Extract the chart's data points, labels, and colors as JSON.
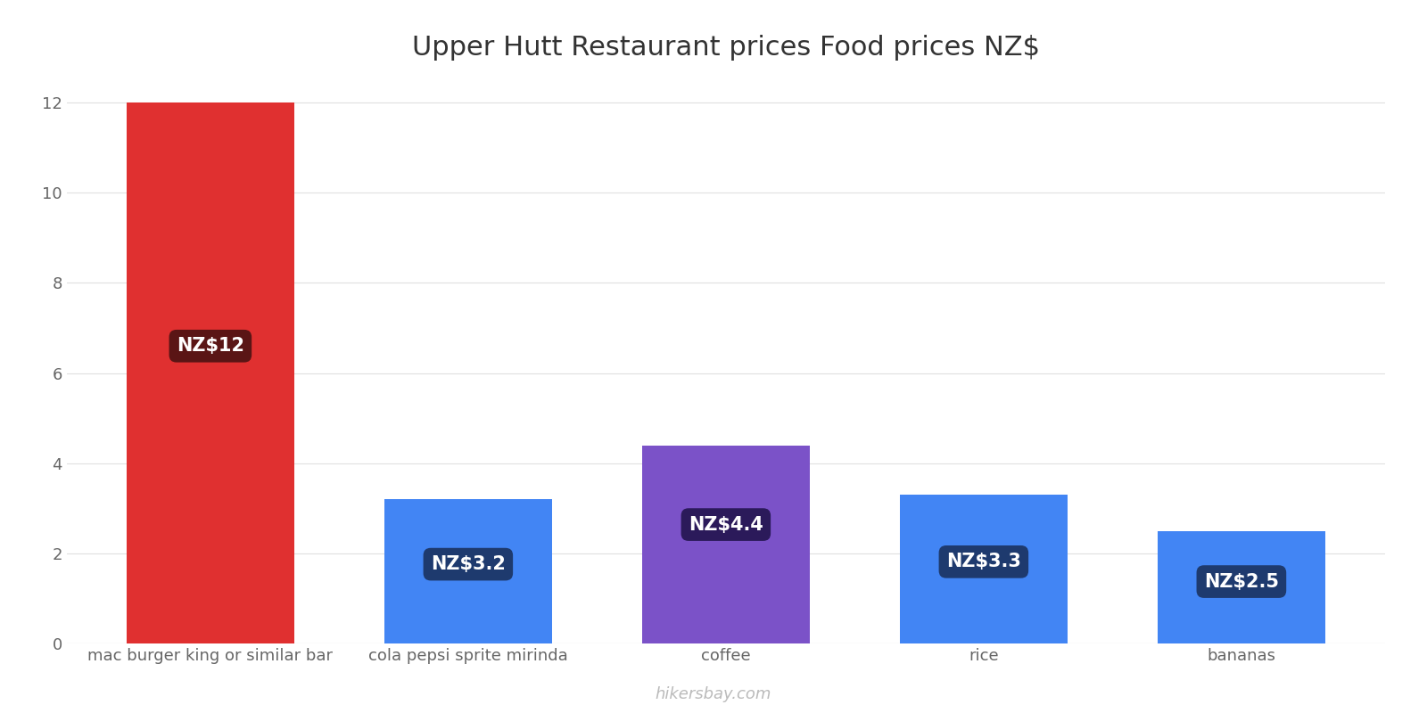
{
  "title": "Upper Hutt Restaurant prices Food prices NZ$",
  "categories": [
    "mac burger king or similar bar",
    "cola pepsi sprite mirinda",
    "coffee",
    "rice",
    "bananas"
  ],
  "values": [
    12,
    3.2,
    4.4,
    3.3,
    2.5
  ],
  "labels": [
    "NZ$12",
    "NZ$3.2",
    "NZ$4.4",
    "NZ$3.3",
    "NZ$2.5"
  ],
  "bar_colors": [
    "#e03030",
    "#4285f4",
    "#7b52c8",
    "#4285f4",
    "#4285f4"
  ],
  "label_bg_colors": [
    "#5a1515",
    "#1e3a6e",
    "#2b1a5a",
    "#1e3a6e",
    "#1e3a6e"
  ],
  "ylim": [
    0,
    12.5
  ],
  "yticks": [
    0,
    2,
    4,
    6,
    8,
    10,
    12
  ],
  "background_color": "#ffffff",
  "grid_color": "#e0e0e0",
  "title_fontsize": 22,
  "tick_fontsize": 13,
  "label_fontsize": 15,
  "watermark": "hikersbay.com",
  "watermark_color": "#bbbbbb",
  "bar_width": 0.65
}
